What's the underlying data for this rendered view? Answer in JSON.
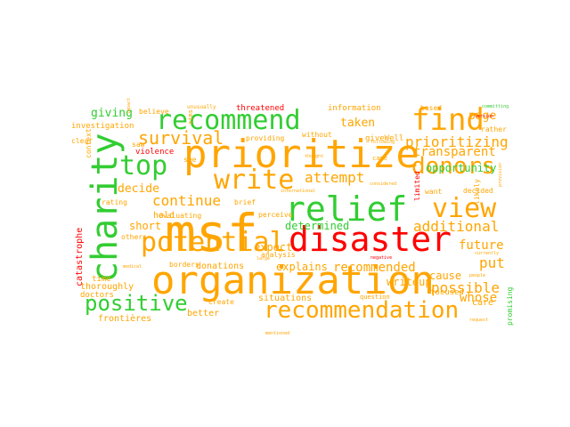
{
  "colors": {
    "orange": "#ffa500",
    "green": "#32cd32",
    "red": "#ff0000",
    "background": "#ffffff"
  },
  "words": [
    {
      "text": "organization",
      "color": "orange"
    },
    {
      "text": "msf",
      "color": "orange"
    },
    {
      "text": "prioritize",
      "color": "orange"
    },
    {
      "text": "disaster",
      "color": "red"
    },
    {
      "text": "charity",
      "color": "green"
    },
    {
      "text": "recommendation",
      "color": "orange"
    },
    {
      "text": "relief",
      "color": "green"
    },
    {
      "text": "potential",
      "color": "orange"
    },
    {
      "text": "recommend",
      "color": "green"
    },
    {
      "text": "write",
      "color": "orange"
    },
    {
      "text": "find",
      "color": "orange"
    },
    {
      "text": "view",
      "color": "orange"
    },
    {
      "text": "donors",
      "color": "orange"
    },
    {
      "text": "top",
      "color": "green"
    },
    {
      "text": "positive",
      "color": "green"
    },
    {
      "text": "survival",
      "color": "orange"
    },
    {
      "text": "prioritizing",
      "color": "orange"
    },
    {
      "text": "additional",
      "color": "orange"
    },
    {
      "text": "continue",
      "color": "orange"
    },
    {
      "text": "attempt",
      "color": "orange"
    },
    {
      "text": "future",
      "color": "orange"
    },
    {
      "text": "possible",
      "color": "orange"
    },
    {
      "text": "recommended",
      "color": "orange"
    },
    {
      "text": "put",
      "color": "orange"
    },
    {
      "text": "transparent",
      "color": "orange"
    },
    {
      "text": "giving",
      "color": "green"
    },
    {
      "text": "taken",
      "color": "orange"
    },
    {
      "text": "page",
      "color": "orange"
    },
    {
      "text": "determined",
      "color": "green"
    },
    {
      "text": "opportunity",
      "color": "green"
    },
    {
      "text": "decide",
      "color": "orange"
    },
    {
      "text": "whose",
      "color": "orange"
    },
    {
      "text": "expect",
      "color": "orange"
    },
    {
      "text": "explains",
      "color": "orange"
    },
    {
      "text": "writeup",
      "color": "orange"
    },
    {
      "text": "short",
      "color": "orange"
    },
    {
      "text": "cause",
      "color": "orange"
    },
    {
      "text": "focused",
      "color": "orange"
    },
    {
      "text": "frontières",
      "color": "orange"
    },
    {
      "text": "thoroughly",
      "color": "orange"
    },
    {
      "text": "donations",
      "color": "orange"
    },
    {
      "text": "hold",
      "color": "orange"
    },
    {
      "text": "situations",
      "color": "orange"
    },
    {
      "text": "better",
      "color": "orange"
    },
    {
      "text": "care",
      "color": "orange"
    },
    {
      "text": "catastrophe",
      "color": "red"
    },
    {
      "text": "violence",
      "color": "red"
    },
    {
      "text": "threatened",
      "color": "red"
    },
    {
      "text": "giveWell",
      "color": "orange"
    },
    {
      "text": "information",
      "color": "orange"
    },
    {
      "text": "based",
      "color": "orange"
    },
    {
      "text": "rather",
      "color": "orange"
    },
    {
      "text": "likely",
      "color": "orange"
    },
    {
      "text": "decided",
      "color": "orange"
    },
    {
      "text": "promising",
      "color": "green"
    },
    {
      "text": "investigation",
      "color": "orange"
    },
    {
      "text": "context",
      "color": "orange"
    },
    {
      "text": "believe",
      "color": "orange"
    },
    {
      "text": "unusually",
      "color": "orange"
    },
    {
      "text": "providing",
      "color": "orange"
    },
    {
      "text": "without",
      "color": "orange"
    },
    {
      "text": "brief",
      "color": "orange"
    },
    {
      "text": "perceive",
      "color": "orange"
    },
    {
      "text": "evaluating",
      "color": "orange"
    },
    {
      "text": "rating",
      "color": "orange"
    },
    {
      "text": "others",
      "color": "orange"
    },
    {
      "text": "time",
      "color": "orange"
    },
    {
      "text": "doctors",
      "color": "orange"
    },
    {
      "text": "borders",
      "color": "orange"
    },
    {
      "text": "create",
      "color": "orange"
    },
    {
      "text": "analysis",
      "color": "orange"
    },
    {
      "text": "question",
      "color": "orange"
    },
    {
      "text": "came",
      "color": "orange"
    },
    {
      "text": "want",
      "color": "orange"
    },
    {
      "text": "limited",
      "color": "red"
    },
    {
      "text": "clear",
      "color": "orange"
    },
    {
      "text": "saw",
      "color": "orange"
    },
    {
      "text": "see",
      "color": "orange"
    },
    {
      "text": "aims",
      "color": "orange"
    },
    {
      "text": "committing",
      "color": "green"
    },
    {
      "text": "version",
      "color": "red"
    },
    {
      "text": "following",
      "color": "orange"
    },
    {
      "text": "considered",
      "color": "orange"
    },
    {
      "text": "international",
      "color": "orange"
    },
    {
      "text": "thought",
      "color": "orange"
    },
    {
      "text": "negative",
      "color": "red"
    },
    {
      "text": "large",
      "color": "orange"
    },
    {
      "text": "medical",
      "color": "orange"
    },
    {
      "text": "request",
      "color": "orange"
    },
    {
      "text": "people",
      "color": "orange"
    },
    {
      "text": "provision",
      "color": "orange"
    },
    {
      "text": "currently",
      "color": "orange"
    },
    {
      "text": "impact",
      "color": "orange"
    },
    {
      "text": "mentioned",
      "color": "orange"
    }
  ]
}
